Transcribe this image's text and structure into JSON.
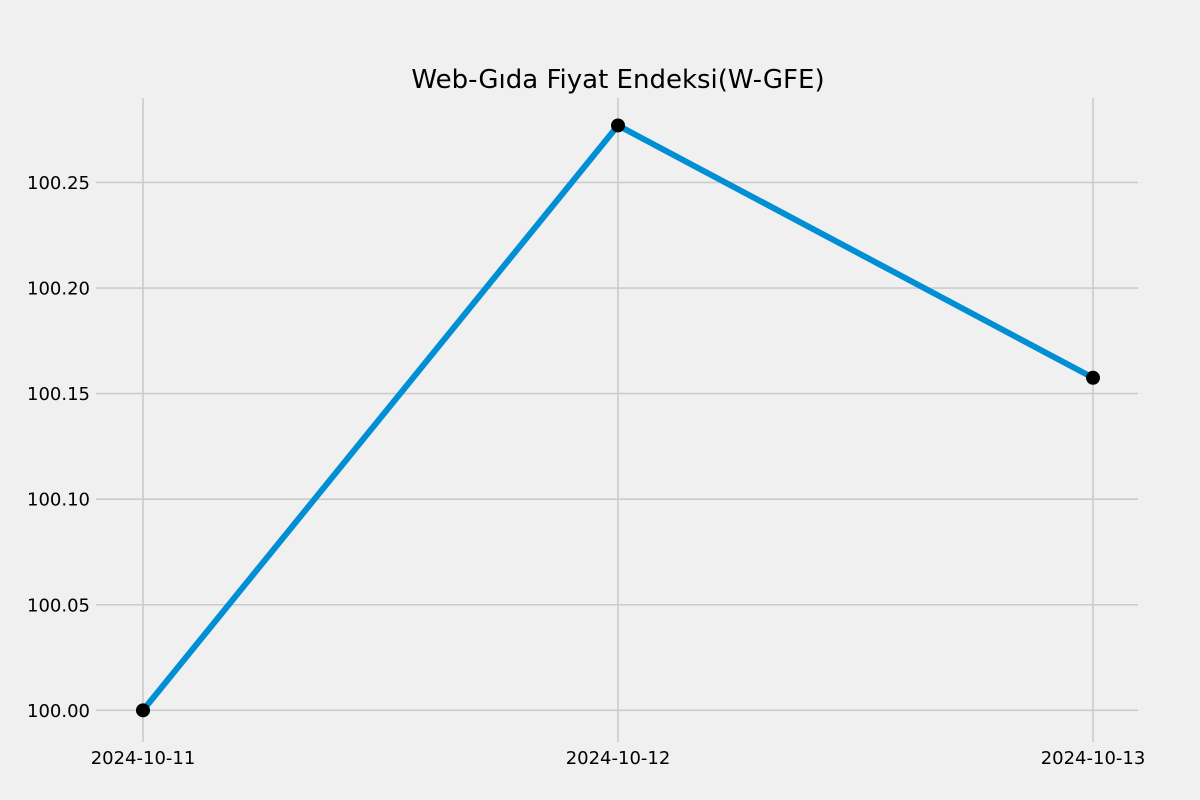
{
  "chart_data": {
    "type": "line",
    "title": "Web-Gıda Fiyat Endeksi(W-GFE)",
    "xlabel": "",
    "ylabel": "",
    "x": [
      "2024-10-11",
      "2024-10-12",
      "2024-10-13"
    ],
    "series": [
      {
        "values": [
          100.0,
          100.277,
          100.1575
        ]
      }
    ],
    "y_ticks": [
      "100.00",
      "100.05",
      "100.10",
      "100.15",
      "100.20",
      "100.25"
    ],
    "ylim": [
      99.985,
      100.29
    ],
    "grid": true,
    "legend": "none",
    "colors": {
      "background": "#f0f0f0",
      "line": "#008fd5",
      "marker": "#000000",
      "grid": "#cbcbcb"
    }
  }
}
